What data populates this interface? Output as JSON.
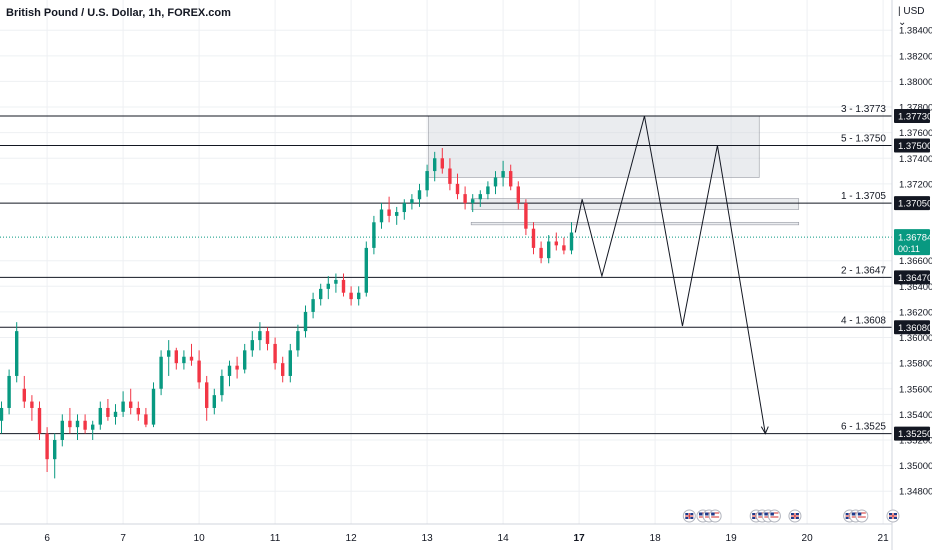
{
  "header": {
    "title": "British Pound / U.S. Dollar, 1h, FOREX.com",
    "currency": "USD"
  },
  "colors": {
    "up": "#089981",
    "down": "#f23645",
    "grid": "#eef0f3",
    "zone_fill": "#d1d4dc",
    "line": "#131722",
    "price_tag": "#089981"
  },
  "chart_data": {
    "type": "candlestick",
    "title": "British Pound / U.S. Dollar, 1h, FOREX.com",
    "ylim": [
      1.347,
      1.3855
    ],
    "y_ticks": [
      "1.34800",
      "1.35000",
      "1.35200",
      "1.35400",
      "1.35600",
      "1.35800",
      "1.36000",
      "1.36200",
      "1.36400",
      "1.36600",
      "1.37200",
      "1.37400",
      "1.37600",
      "1.37800",
      "1.38000",
      "1.38200",
      "1.38400"
    ],
    "x_ticks": [
      {
        "label": "6",
        "slot": 6
      },
      {
        "label": "7",
        "slot": 16
      },
      {
        "label": "10",
        "slot": 26
      },
      {
        "label": "11",
        "slot": 36
      },
      {
        "label": "12",
        "slot": 46
      },
      {
        "label": "13",
        "slot": 56
      },
      {
        "label": "14",
        "slot": 66
      },
      {
        "label": "17",
        "slot": 76,
        "bold": true
      },
      {
        "label": "18",
        "slot": 86
      },
      {
        "label": "19",
        "slot": 96
      },
      {
        "label": "20",
        "slot": 106
      },
      {
        "label": "21",
        "slot": 116
      }
    ],
    "price_levels": [
      {
        "label": "3 - 1.3773",
        "tag": "1.37730",
        "value": 1.3773
      },
      {
        "label": "5 - 1.3750",
        "tag": "1.37500",
        "value": 1.375
      },
      {
        "label": "1 - 1.3705",
        "tag": "1.37050",
        "value": 1.3705
      },
      {
        "label": "2 - 1.3647",
        "tag": "1.36470",
        "value": 1.3647
      },
      {
        "label": "4 - 1.3608",
        "tag": "1.36080",
        "value": 1.3608
      },
      {
        "label": "6 - 1.3525",
        "tag": "1.35250",
        "value": 1.3525
      }
    ],
    "current_price": {
      "value": 1.36784,
      "label": "1.36784",
      "countdown": "00:11"
    },
    "zones": [
      {
        "x0": 56.2,
        "x1": 99.7,
        "y_top": 1.3773,
        "y_bottom": 1.3725
      },
      {
        "x0": 61.8,
        "x1": 104.9,
        "y_top": 1.37085,
        "y_bottom": 1.37
      },
      {
        "x0": 61.8,
        "x1": 104.9,
        "y_top": 1.369,
        "y_bottom": 1.3688
      }
    ],
    "projection": [
      [
        75.5,
        1.3682
      ],
      [
        76.4,
        1.3708
      ],
      [
        79,
        1.3648
      ],
      [
        84.6,
        1.3773
      ],
      [
        89.6,
        1.3609
      ],
      [
        94.2,
        1.375
      ],
      [
        100.5,
        1.3525
      ]
    ],
    "candles": [
      [
        1.3535,
        1.355,
        1.3525,
        1.3545
      ],
      [
        1.3545,
        1.3575,
        1.354,
        1.357
      ],
      [
        1.357,
        1.3612,
        1.3565,
        1.3605
      ],
      [
        1.356,
        1.357,
        1.3545,
        1.355
      ],
      [
        1.355,
        1.3555,
        1.3535,
        1.3545
      ],
      [
        1.3545,
        1.355,
        1.352,
        1.3525
      ],
      [
        1.3525,
        1.353,
        1.3495,
        1.3505
      ],
      [
        1.3505,
        1.3525,
        1.349,
        1.352
      ],
      [
        1.352,
        1.354,
        1.3515,
        1.3535
      ],
      [
        1.3535,
        1.3545,
        1.3525,
        1.353
      ],
      [
        1.353,
        1.354,
        1.352,
        1.3535
      ],
      [
        1.3535,
        1.354,
        1.3525,
        1.3528
      ],
      [
        1.3528,
        1.3535,
        1.352,
        1.3532
      ],
      [
        1.3532,
        1.355,
        1.3528,
        1.3545
      ],
      [
        1.3545,
        1.3552,
        1.3535,
        1.3538
      ],
      [
        1.3538,
        1.3548,
        1.3532,
        1.3542
      ],
      [
        1.3542,
        1.3558,
        1.3538,
        1.355
      ],
      [
        1.355,
        1.356,
        1.354,
        1.3545
      ],
      [
        1.3545,
        1.355,
        1.3535,
        1.354
      ],
      [
        1.354,
        1.3545,
        1.353,
        1.3532
      ],
      [
        1.3532,
        1.3565,
        1.353,
        1.356
      ],
      [
        1.356,
        1.359,
        1.3555,
        1.3585
      ],
      [
        1.3585,
        1.3598,
        1.357,
        1.359
      ],
      [
        1.359,
        1.3592,
        1.3575,
        1.358
      ],
      [
        1.358,
        1.359,
        1.3575,
        1.3585
      ],
      [
        1.3585,
        1.3595,
        1.3578,
        1.3582
      ],
      [
        1.3582,
        1.359,
        1.356,
        1.3565
      ],
      [
        1.3565,
        1.357,
        1.3535,
        1.3545
      ],
      [
        1.3545,
        1.356,
        1.354,
        1.3555
      ],
      [
        1.3555,
        1.3575,
        1.355,
        1.357
      ],
      [
        1.357,
        1.3582,
        1.3562,
        1.3578
      ],
      [
        1.3578,
        1.3585,
        1.3568,
        1.3575
      ],
      [
        1.3575,
        1.3595,
        1.3572,
        1.359
      ],
      [
        1.359,
        1.3605,
        1.3585,
        1.3598
      ],
      [
        1.3598,
        1.3612,
        1.359,
        1.3605
      ],
      [
        1.3605,
        1.3608,
        1.359,
        1.3595
      ],
      [
        1.3595,
        1.36,
        1.3575,
        1.358
      ],
      [
        1.358,
        1.3585,
        1.3565,
        1.357
      ],
      [
        1.357,
        1.3595,
        1.3565,
        1.359
      ],
      [
        1.359,
        1.361,
        1.3585,
        1.3605
      ],
      [
        1.3605,
        1.3625,
        1.36,
        1.362
      ],
      [
        1.362,
        1.3635,
        1.3615,
        1.363
      ],
      [
        1.363,
        1.3642,
        1.3625,
        1.3638
      ],
      [
        1.3638,
        1.3648,
        1.363,
        1.3642
      ],
      [
        1.3642,
        1.365,
        1.3635,
        1.3645
      ],
      [
        1.3645,
        1.365,
        1.3632,
        1.3635
      ],
      [
        1.3635,
        1.364,
        1.3625,
        1.363
      ],
      [
        1.363,
        1.364,
        1.3625,
        1.3635
      ],
      [
        1.3635,
        1.3675,
        1.3632,
        1.367
      ],
      [
        1.367,
        1.3695,
        1.3665,
        1.369
      ],
      [
        1.369,
        1.3705,
        1.3685,
        1.37
      ],
      [
        1.37,
        1.371,
        1.369,
        1.3695
      ],
      [
        1.3695,
        1.3702,
        1.3688,
        1.3698
      ],
      [
        1.3698,
        1.3708,
        1.3692,
        1.3705
      ],
      [
        1.3705,
        1.3712,
        1.37,
        1.3708
      ],
      [
        1.3708,
        1.372,
        1.3702,
        1.3715
      ],
      [
        1.3715,
        1.3735,
        1.371,
        1.373
      ],
      [
        1.373,
        1.3745,
        1.3722,
        1.374
      ],
      [
        1.374,
        1.3748,
        1.3728,
        1.3732
      ],
      [
        1.3732,
        1.374,
        1.3715,
        1.372
      ],
      [
        1.372,
        1.3728,
        1.3708,
        1.3712
      ],
      [
        1.3712,
        1.3718,
        1.37,
        1.3705
      ],
      [
        1.3705,
        1.3712,
        1.3698,
        1.3708
      ],
      [
        1.3708,
        1.3715,
        1.3702,
        1.3712
      ],
      [
        1.3712,
        1.3722,
        1.3708,
        1.3718
      ],
      [
        1.3718,
        1.373,
        1.3712,
        1.3725
      ],
      [
        1.3725,
        1.3738,
        1.3718,
        1.373
      ],
      [
        1.373,
        1.3735,
        1.3715,
        1.3718
      ],
      [
        1.3718,
        1.3722,
        1.37,
        1.3705
      ],
      [
        1.3705,
        1.3708,
        1.368,
        1.3685
      ],
      [
        1.3685,
        1.369,
        1.3665,
        1.367
      ],
      [
        1.367,
        1.3675,
        1.3658,
        1.3662
      ],
      [
        1.3662,
        1.368,
        1.3658,
        1.3675
      ],
      [
        1.3675,
        1.3682,
        1.3668,
        1.3672
      ],
      [
        1.3672,
        1.3678,
        1.3665,
        1.3668
      ],
      [
        1.3668,
        1.369,
        1.3665,
        1.3682
      ]
    ]
  },
  "event_icons": [
    {
      "name": "uk-event-icon",
      "slot": 90.5
    },
    {
      "name": "us-event-icon",
      "slot": 92.3
    },
    {
      "name": "us-event-icon",
      "slot": 93.1
    },
    {
      "name": "us-event-icon",
      "slot": 93.9
    },
    {
      "name": "uk-event-icon",
      "slot": 99.3
    },
    {
      "name": "us-event-icon",
      "slot": 100.1
    },
    {
      "name": "us-event-icon",
      "slot": 100.9
    },
    {
      "name": "us-event-icon",
      "slot": 101.7
    },
    {
      "name": "uk-event-icon",
      "slot": 104.4
    },
    {
      "name": "uk-event-icon",
      "slot": 111.6
    },
    {
      "name": "us-event-icon",
      "slot": 112.4
    },
    {
      "name": "us-event-icon",
      "slot": 113.2
    },
    {
      "name": "uk-event-icon",
      "slot": 117.3
    }
  ]
}
